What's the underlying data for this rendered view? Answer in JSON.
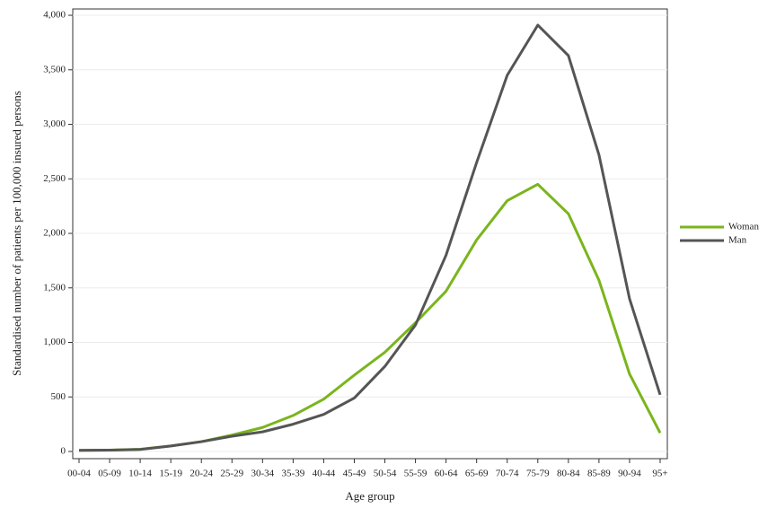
{
  "chart_data": {
    "type": "line",
    "xlabel": "Age group",
    "ylabel": "Standardised number of patients per 100,000 insured persons",
    "categories": [
      "00-04",
      "05-09",
      "10-14",
      "15-19",
      "20-24",
      "25-29",
      "30-34",
      "35-39",
      "40-44",
      "45-49",
      "50-54",
      "55-59",
      "60-64",
      "65-69",
      "70-74",
      "75-79",
      "80-84",
      "85-89",
      "90-94",
      "95+"
    ],
    "series": [
      {
        "name": "Woman",
        "color": "#7ab51d",
        "values": [
          10,
          12,
          20,
          50,
          90,
          150,
          220,
          330,
          480,
          700,
          910,
          1180,
          1470,
          1940,
          2300,
          2450,
          2180,
          1570,
          710,
          170
        ]
      },
      {
        "name": "Man",
        "color": "#555555",
        "values": [
          10,
          12,
          18,
          50,
          90,
          140,
          180,
          250,
          340,
          490,
          780,
          1160,
          1800,
          2650,
          3450,
          3910,
          3630,
          2720,
          1400,
          520
        ]
      }
    ],
    "ylim": [
      -66,
      4058
    ],
    "yticks": [
      0,
      500,
      {
        "value": 1000,
        "label": "1,000"
      },
      {
        "value": 1500,
        "label": "1,500"
      },
      {
        "value": 2000,
        "label": "2,000"
      },
      {
        "value": 2500,
        "label": "2,500"
      },
      {
        "value": 3000,
        "label": "3,000"
      },
      {
        "value": 3500,
        "label": "3,500"
      },
      {
        "value": 4000,
        "label": "4,000"
      }
    ],
    "grid": true,
    "legend": "right"
  }
}
